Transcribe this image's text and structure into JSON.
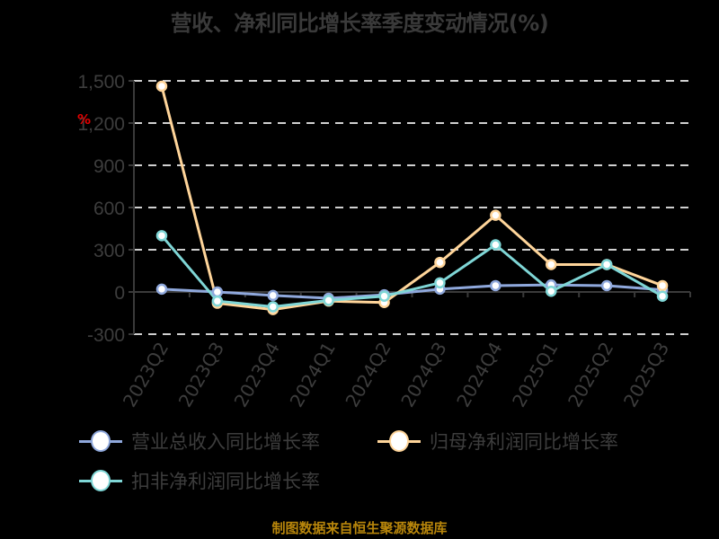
{
  "title": "营收、净利同比增长率季度变动情况(%)",
  "unit_marker": "%",
  "source": "制图数据来自恒生聚源数据库",
  "legend": [
    {
      "label": "营业总收入同比增长率",
      "color": "#8fa8dc"
    },
    {
      "label": "归母净利润同比增长率",
      "color": "#ffd59a"
    },
    {
      "label": "扣非净利润同比增长率",
      "color": "#7fd6d6"
    }
  ],
  "chart_data": {
    "type": "line",
    "title": "营收、净利同比增长率季度变动情况(%)",
    "xlabel": "",
    "ylabel": "%",
    "categories": [
      "2023Q2",
      "2023Q3",
      "2023Q4",
      "2024Q1",
      "2024Q2",
      "2024Q3",
      "2024Q4",
      "2025Q1",
      "2025Q2",
      "2025Q3"
    ],
    "series": [
      {
        "name": "营业总收入同比增长率",
        "color": "#8fa8dc",
        "values": [
          20,
          0,
          -25,
          -45,
          -20,
          20,
          45,
          50,
          45,
          15
        ]
      },
      {
        "name": "归母净利润同比增长率",
        "color": "#ffd59a",
        "values": [
          1462,
          -80,
          -125,
          -65,
          -75,
          210,
          545,
          195,
          195,
          45
        ]
      },
      {
        "name": "扣非净利润同比增长率",
        "color": "#7fd6d6",
        "values": [
          400,
          -65,
          -105,
          -60,
          -30,
          65,
          335,
          5,
          195,
          -30
        ]
      }
    ],
    "ylim": [
      -300,
      1500
    ],
    "yticks": [
      -300,
      0,
      300,
      600,
      900,
      1200,
      1500
    ],
    "ytick_labels": [
      "-300",
      "0",
      "300",
      "600",
      "900",
      "1,200",
      "1,500"
    ],
    "grid": true,
    "grid_style": "dashed",
    "legend_position": "bottom"
  }
}
